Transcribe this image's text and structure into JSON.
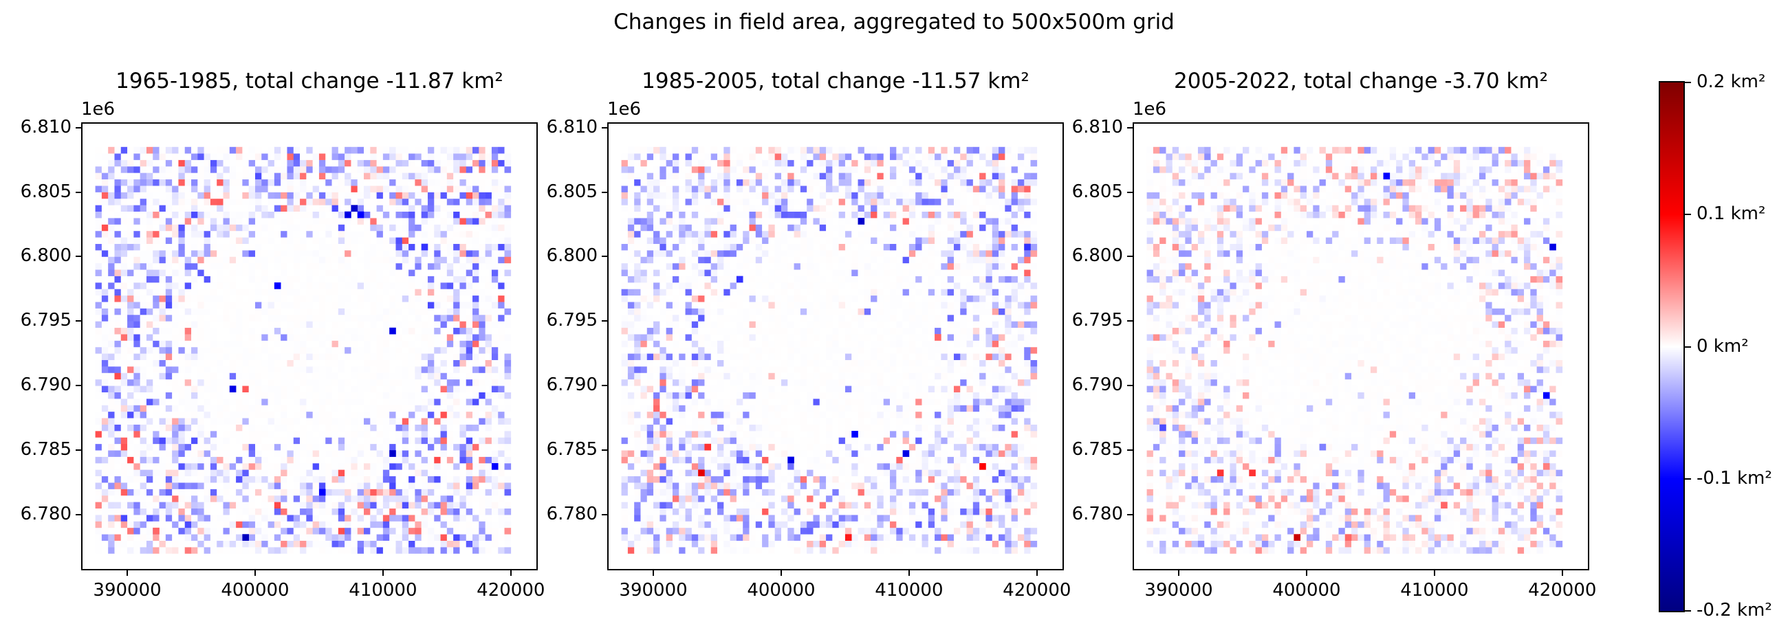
{
  "suptitle": "Changes in field area, aggregated to 500x500m grid",
  "chart_data": [
    {
      "type": "heatmap",
      "title": "1965-1985, total change -11.87 km²",
      "total_change_km2": -11.87,
      "x_ticks": [
        "390000",
        "400000",
        "410000",
        "420000"
      ],
      "y_ticks": [
        "6.780",
        "6.785",
        "6.790",
        "6.795",
        "6.800",
        "6.805",
        "6.810"
      ],
      "y_offset_label": "1e6",
      "xlim": [
        386500,
        422000
      ],
      "ylim": [
        6775800,
        6810300
      ],
      "cell_size_m": 500,
      "hotspots": [
        {
          "x": 407750,
          "y": 6803750,
          "v": -0.14
        },
        {
          "x": 407250,
          "y": 6803250,
          "v": -0.12
        },
        {
          "x": 408250,
          "y": 6803250,
          "v": -0.1
        },
        {
          "x": 401750,
          "y": 6797750,
          "v": -0.1
        },
        {
          "x": 410750,
          "y": 6794250,
          "v": -0.12
        },
        {
          "x": 410750,
          "y": 6784750,
          "v": -0.14
        },
        {
          "x": 399250,
          "y": 6778250,
          "v": -0.15
        },
        {
          "x": 398250,
          "y": 6789750,
          "v": -0.12
        },
        {
          "x": 405250,
          "y": 6781750,
          "v": -0.1
        },
        {
          "x": 418750,
          "y": 6783750,
          "v": -0.1
        },
        {
          "x": 413250,
          "y": 6800750,
          "v": -0.08
        },
        {
          "x": 392250,
          "y": 6778750,
          "v": 0.06
        },
        {
          "x": 416750,
          "y": 6783750,
          "v": 0.05
        }
      ]
    },
    {
      "type": "heatmap",
      "title": "1985-2005, total change -11.57 km²",
      "total_change_km2": -11.57,
      "x_ticks": [
        "390000",
        "400000",
        "410000",
        "420000"
      ],
      "y_ticks": [
        "6.780",
        "6.785",
        "6.790",
        "6.795",
        "6.800",
        "6.805",
        "6.810"
      ],
      "y_offset_label": "1e6",
      "xlim": [
        386500,
        422000
      ],
      "ylim": [
        6775800,
        6810300
      ],
      "cell_size_m": 500,
      "hotspots": [
        {
          "x": 406250,
          "y": 6802750,
          "v": -0.14
        },
        {
          "x": 400750,
          "y": 6784250,
          "v": -0.12
        },
        {
          "x": 409750,
          "y": 6784750,
          "v": -0.12
        },
        {
          "x": 405750,
          "y": 6786250,
          "v": -0.1
        },
        {
          "x": 396750,
          "y": 6798250,
          "v": -0.08
        },
        {
          "x": 419250,
          "y": 6800750,
          "v": -0.08
        },
        {
          "x": 393750,
          "y": 6783250,
          "v": 0.12
        },
        {
          "x": 394250,
          "y": 6785250,
          "v": 0.08
        },
        {
          "x": 405250,
          "y": 6778250,
          "v": 0.09
        },
        {
          "x": 415750,
          "y": 6783750,
          "v": 0.1
        },
        {
          "x": 412250,
          "y": 6793750,
          "v": 0.06
        }
      ]
    },
    {
      "type": "heatmap",
      "title": "2005-2022, total change -3.70 km²",
      "total_change_km2": -3.7,
      "x_ticks": [
        "390000",
        "400000",
        "410000",
        "420000"
      ],
      "y_ticks": [
        "6.780",
        "6.785",
        "6.790",
        "6.795",
        "6.800",
        "6.805",
        "6.810"
      ],
      "y_offset_label": "1e6",
      "xlim": [
        386500,
        422000
      ],
      "ylim": [
        6775800,
        6810300
      ],
      "cell_size_m": 500,
      "hotspots": [
        {
          "x": 419250,
          "y": 6800750,
          "v": -0.12
        },
        {
          "x": 418750,
          "y": 6789250,
          "v": -0.1
        },
        {
          "x": 406250,
          "y": 6806250,
          "v": -0.1
        },
        {
          "x": 399250,
          "y": 6778250,
          "v": 0.14
        },
        {
          "x": 393250,
          "y": 6783250,
          "v": 0.08
        },
        {
          "x": 395750,
          "y": 6783250,
          "v": 0.08
        },
        {
          "x": 403250,
          "y": 6778250,
          "v": 0.06
        },
        {
          "x": 410750,
          "y": 6780750,
          "v": 0.06
        },
        {
          "x": 418750,
          "y": 6783750,
          "v": 0.05
        },
        {
          "x": 388750,
          "y": 6786750,
          "v": -0.07
        },
        {
          "x": 401250,
          "y": 6785250,
          "v": -0.05
        }
      ]
    }
  ],
  "colorbar": {
    "labels": [
      "0.2 km²",
      "0.1 km²",
      "0 km²",
      "-0.1 km²",
      "-0.2 km²"
    ],
    "values": [
      0.2,
      0.1,
      0,
      -0.1,
      -0.2
    ],
    "range": [
      -0.2,
      0.2
    ],
    "colormap": "seismic",
    "colors": {
      "max": "#800000",
      "high": "#ff0000",
      "zero": "#ffffff",
      "low": "#0000ff",
      "min": "#000080"
    }
  }
}
